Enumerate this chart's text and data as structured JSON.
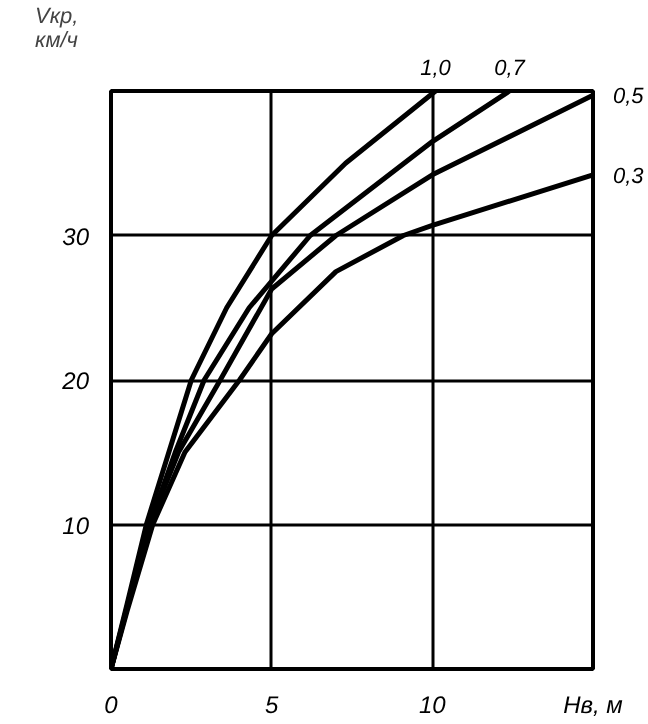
{
  "chart_data": {
    "type": "line",
    "xlabel": "Hв, м",
    "ylabel": "Vкр, км/ч",
    "xlim": [
      0,
      15
    ],
    "ylim": [
      0,
      40
    ],
    "xticks": [
      0,
      5,
      10
    ],
    "yticks": [
      10,
      20,
      30
    ],
    "grid": true,
    "legend": false,
    "marker": "none",
    "line_style": "solid",
    "series": [
      {
        "name": "1,0",
        "color": "#000000",
        "x": [
          0,
          0.5,
          1.1,
          1.8,
          2.5,
          3.6,
          5,
          7.3,
          10.1
        ],
        "values": [
          0,
          4.5,
          10,
          15,
          20,
          25,
          30,
          35,
          40
        ]
      },
      {
        "name": "0,7",
        "color": "#000000",
        "x": [
          0,
          0.5,
          1.2,
          2,
          2.9,
          4.3,
          6.2,
          10,
          12.4
        ],
        "values": [
          0,
          4.3,
          10,
          15,
          20,
          25,
          30,
          36.5,
          40
        ]
      },
      {
        "name": "0,5",
        "color": "#000000",
        "x": [
          0,
          0.5,
          1.2,
          2.1,
          3.4,
          5,
          7,
          10,
          15
        ],
        "values": [
          0,
          4.2,
          10,
          15,
          20,
          26.3,
          30,
          34.2,
          39.7
        ]
      },
      {
        "name": "0,3",
        "color": "#000000",
        "x": [
          0,
          0.5,
          1.3,
          2.3,
          4,
          5,
          7,
          9.1,
          10,
          15
        ],
        "values": [
          0,
          4,
          10,
          15,
          20,
          23.2,
          27.5,
          30,
          30.7,
          34.2
        ]
      }
    ]
  }
}
